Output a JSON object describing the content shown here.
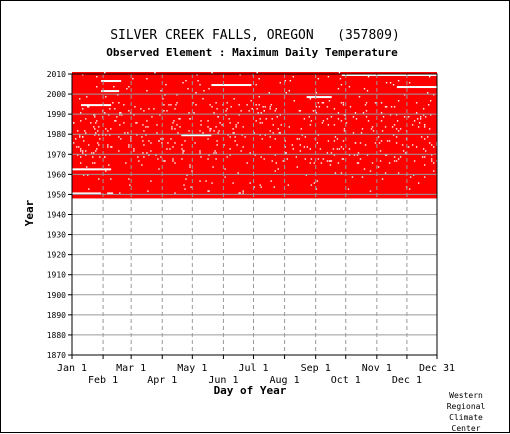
{
  "chart_data": {
    "type": "heatmap",
    "title": "SILVER CREEK FALLS, OREGON   (357809)",
    "subtitle": "Observed Element : Maximum Daily Temperature",
    "xlabel": "Day of Year",
    "ylabel": "Year",
    "ylim": [
      1870,
      2010
    ],
    "xlim": [
      "Jan 1",
      "Dec 31"
    ],
    "y_ticks": [
      1870,
      1880,
      1890,
      1900,
      1910,
      1920,
      1930,
      1940,
      1950,
      1960,
      1970,
      1980,
      1990,
      2000,
      2010
    ],
    "x_ticks_upper": [
      {
        "label": "Jan 1",
        "day": 1
      },
      {
        "label": "Mar 1",
        "day": 60
      },
      {
        "label": "May 1",
        "day": 121
      },
      {
        "label": "Jul 1",
        "day": 182
      },
      {
        "label": "Sep 1",
        "day": 244
      },
      {
        "label": "Nov 1",
        "day": 305
      },
      {
        "label": "Dec 31",
        "day": 365
      }
    ],
    "x_ticks_lower": [
      {
        "label": "Feb 1",
        "day": 32
      },
      {
        "label": "Apr 1",
        "day": 91
      },
      {
        "label": "Jun 1",
        "day": 152
      },
      {
        "label": "Aug 1",
        "day": 213
      },
      {
        "label": "Oct 1",
        "day": 274
      },
      {
        "label": "Dec 1",
        "day": 335
      }
    ],
    "grid": true,
    "data_color": "#ff0000",
    "record_start_year": 1948,
    "record_end_year": 2010,
    "missing_spans": [
      {
        "year": 1950,
        "start_day": 1,
        "end_day": 30
      },
      {
        "year": 1950,
        "start_day": 36,
        "end_day": 42
      },
      {
        "year": 1962,
        "start_day": 1,
        "end_day": 40
      },
      {
        "year": 1979,
        "start_day": 110,
        "end_day": 140
      },
      {
        "year": 1994,
        "start_day": 10,
        "end_day": 40
      },
      {
        "year": 1998,
        "start_day": 235,
        "end_day": 260
      },
      {
        "year": 2001,
        "start_day": 30,
        "end_day": 48
      },
      {
        "year": 2003,
        "start_day": 325,
        "end_day": 365
      },
      {
        "year": 2004,
        "start_day": 140,
        "end_day": 180
      },
      {
        "year": 2006,
        "start_day": 30,
        "end_day": 50
      },
      {
        "year": 2009,
        "start_day": 270,
        "end_day": 365
      }
    ]
  },
  "credit": [
    "Western",
    "Regional",
    "Climate",
    "Center"
  ]
}
